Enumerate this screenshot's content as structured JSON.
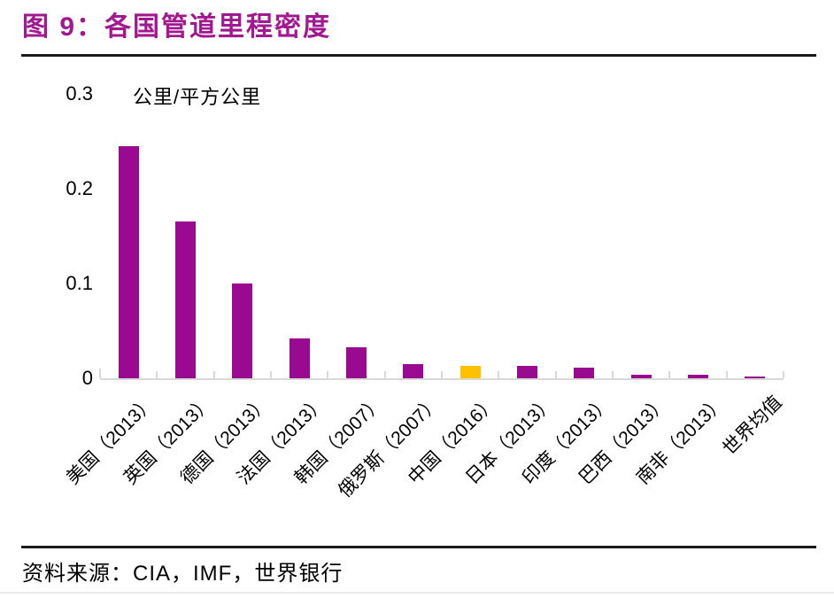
{
  "title": "图 9：各国管道里程密度",
  "accent_color": "#A21890",
  "chart_data": {
    "type": "bar",
    "title": "各国管道里程密度",
    "unit_label": "公里/平方公里",
    "categories": [
      "美国（2013）",
      "英国（2013）",
      "德国（2013）",
      "法国（2013）",
      "韩国（2007）",
      "俄罗斯（2007）",
      "中国（2016）",
      "日本（2013）",
      "印度（2013）",
      "巴西（2013）",
      "南非（2013）",
      "世界均值"
    ],
    "values": [
      0.245,
      0.165,
      0.1,
      0.042,
      0.033,
      0.015,
      0.013,
      0.013,
      0.011,
      0.004,
      0.004,
      0.0015
    ],
    "yticks": [
      "0",
      "0.1",
      "0.2",
      "0.3"
    ],
    "ytick_values": [
      0,
      0.1,
      0.2,
      0.3
    ],
    "ylim": [
      0,
      0.3
    ],
    "bar_color": "#9A0A90",
    "highlight_color": "#FFC000",
    "highlight_index": 6,
    "highlight_category": "中国（2016）",
    "axis_color": "#D9D9D9",
    "grid": false,
    "legend": false
  },
  "footer": {
    "source_label": "资料来源：CIA，IMF，世界银行"
  }
}
